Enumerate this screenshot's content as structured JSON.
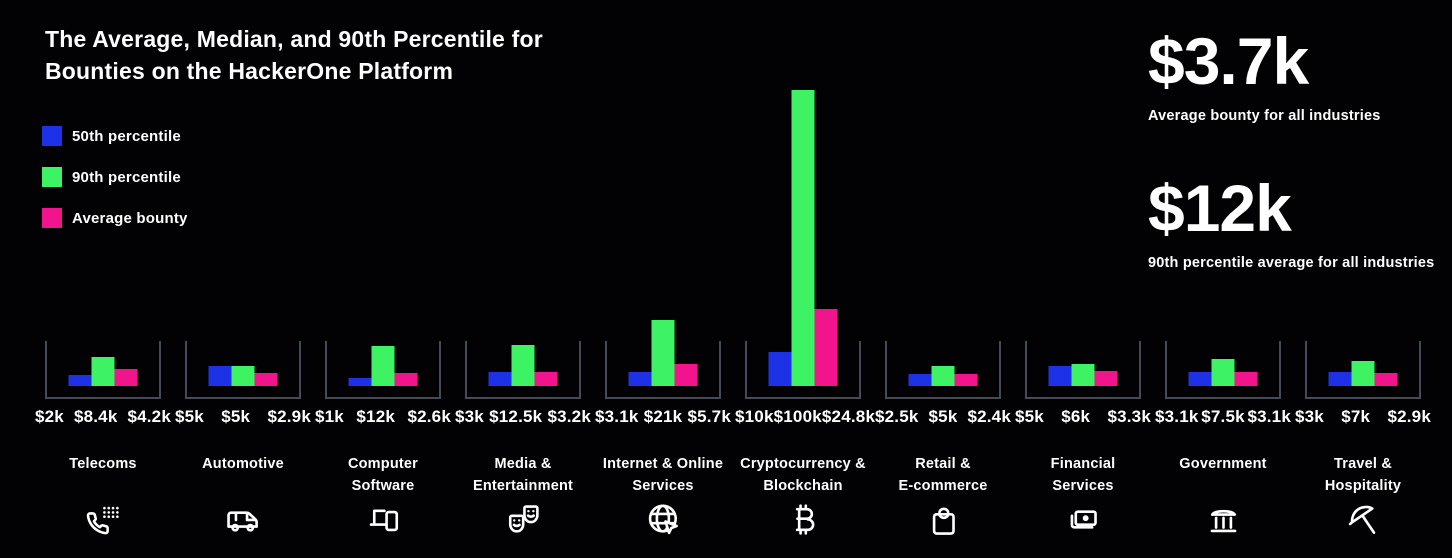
{
  "title": {
    "line1": "The Average, Median, and 90th Percentile for",
    "line2": "Bounties on the HackerOne Platform"
  },
  "legend": {
    "items": [
      {
        "label": "50th percentile",
        "color": "#1d31e6"
      },
      {
        "label": "90th percentile",
        "color": "#3df263"
      },
      {
        "label": "Average bounty",
        "color": "#f2148c"
      }
    ]
  },
  "stats": {
    "items": [
      {
        "value": "$3.7k",
        "caption": "Average bounty for all industries"
      },
      {
        "value": "$12k",
        "caption": "90th percentile average for all industries"
      }
    ]
  },
  "chart_data": {
    "type": "bar",
    "title": "The Average, Median, and 90th Percentile for Bounties on the HackerOne Platform",
    "unit": "USD (thousands)",
    "series": [
      "50th percentile",
      "90th percentile",
      "Average bounty"
    ],
    "series_colors": [
      "#1d31e6",
      "#3df263",
      "#f2148c"
    ],
    "legend_position": "top-left",
    "grid": false,
    "ylim": [
      0,
      100
    ],
    "categories": [
      "Telecoms",
      "Automotive",
      "Computer Software",
      "Media & Entertainment",
      "Internet & Online Services",
      "Cryptocurrency & Blockchain",
      "Retail & E-commerce",
      "Financial Services",
      "Government",
      "Travel & Hospitality"
    ],
    "industries": [
      {
        "name": "Telecoms",
        "label": "Telecoms",
        "icon": "telephone-icon",
        "values_usd_k": [
          2,
          8.4,
          4.2
        ],
        "value_labels": [
          "$2k",
          "$8.4k",
          "$4.2k"
        ]
      },
      {
        "name": "Automotive",
        "label": "Automotive",
        "icon": "vehicle-icon",
        "values_usd_k": [
          5,
          5,
          2.9
        ],
        "value_labels": [
          "$5k",
          "$5k",
          "$2.9k"
        ]
      },
      {
        "name": "Computer Software",
        "label": "Computer\nSoftware",
        "icon": "devices-icon",
        "values_usd_k": [
          1,
          12,
          2.6
        ],
        "value_labels": [
          "$1k",
          "$12k",
          "$2.6k"
        ]
      },
      {
        "name": "Media & Entertainment",
        "label": "Media &\nEntertainment",
        "icon": "theater-masks-icon",
        "values_usd_k": [
          3,
          12.5,
          3.2
        ],
        "value_labels": [
          "$3k",
          "$12.5k",
          "$3.2k"
        ]
      },
      {
        "name": "Internet & Online Services",
        "label": "Internet & Online\nServices",
        "icon": "globe-cursor-icon",
        "values_usd_k": [
          3.1,
          21,
          5.7
        ],
        "value_labels": [
          "$3.1k",
          "$21k",
          "$5.7k"
        ]
      },
      {
        "name": "Cryptocurrency & Blockchain",
        "label": "Cryptocurrency &\nBlockchain",
        "icon": "bitcoin-icon",
        "values_usd_k": [
          10,
          100,
          24.8
        ],
        "value_labels": [
          "$10k",
          "$100k",
          "$24.8k"
        ]
      },
      {
        "name": "Retail & E-commerce",
        "label": "Retail &\nE-commerce",
        "icon": "shopping-bag-icon",
        "values_usd_k": [
          2.5,
          5,
          2.4
        ],
        "value_labels": [
          "$2.5k",
          "$5k",
          "$2.4k"
        ]
      },
      {
        "name": "Financial Services",
        "label": "Financial\nServices",
        "icon": "banknote-icon",
        "values_usd_k": [
          5,
          6,
          3.3
        ],
        "value_labels": [
          "$5k",
          "$6k",
          "$3.3k"
        ]
      },
      {
        "name": "Government",
        "label": "Government",
        "icon": "bank-icon",
        "values_usd_k": [
          3.1,
          7.5,
          3.1
        ],
        "value_labels": [
          "$3.1k",
          "$7.5k",
          "$3.1k"
        ]
      },
      {
        "name": "Travel & Hospitality",
        "label": "Travel &\nHospitality",
        "icon": "beach-umbrella-icon",
        "values_usd_k": [
          3,
          7,
          2.9
        ],
        "value_labels": [
          "$3k",
          "$7k",
          "$2.9k"
        ]
      }
    ]
  },
  "colors": {
    "background": "#020204",
    "text": "#ffffff",
    "chart_frame": "#464a58",
    "p50_blue": "#1d31e6",
    "p90_green": "#3df263",
    "avg_pink": "#f2148c"
  }
}
